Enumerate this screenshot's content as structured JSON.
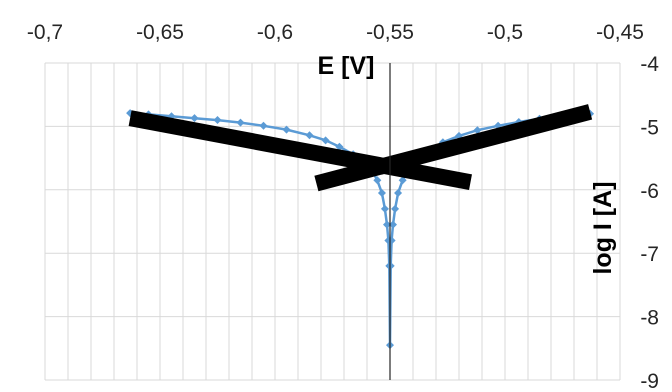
{
  "chart_data": {
    "type": "scatter",
    "title": "",
    "xlabel": "E [V]",
    "ylabel": "log I [A]",
    "xlim": [
      -0.7,
      -0.45
    ],
    "ylim": [
      -9,
      -4
    ],
    "x_ticks": [
      "-0,7",
      "-0,65",
      "-0,6",
      "-0,55",
      "-0,5",
      "-0,45"
    ],
    "y_ticks": [
      "-4",
      "-5",
      "-6",
      "-7",
      "-8",
      "-9"
    ],
    "x_axis_position": "top",
    "y_axis_position": "right",
    "grid": true,
    "minor_x_grid_step": 0.01,
    "legend": "none",
    "series": [
      {
        "color": "#5b9bd5",
        "marker": "diamond",
        "x": [
          -0.663,
          -0.655,
          -0.645,
          -0.635,
          -0.625,
          -0.615,
          -0.605,
          -0.595,
          -0.585,
          -0.578,
          -0.572,
          -0.566,
          -0.562,
          -0.558,
          -0.5555,
          -0.5535,
          -0.5522,
          -0.5513,
          -0.5507,
          -0.5503,
          -0.55,
          -0.5497,
          -0.5493,
          -0.5487,
          -0.5478,
          -0.5465,
          -0.5445,
          -0.542,
          -0.538,
          -0.533,
          -0.527,
          -0.52,
          -0.512,
          -0.503,
          -0.494,
          -0.485,
          -0.476,
          -0.468,
          -0.463
        ],
        "y": [
          -4.79,
          -4.81,
          -4.84,
          -4.87,
          -4.9,
          -4.94,
          -4.99,
          -5.05,
          -5.14,
          -5.22,
          -5.32,
          -5.44,
          -5.55,
          -5.68,
          -5.85,
          -6.05,
          -6.3,
          -6.55,
          -6.8,
          -7.2,
          -8.45,
          -7.2,
          -6.8,
          -6.55,
          -6.3,
          -6.05,
          -5.85,
          -5.68,
          -5.52,
          -5.38,
          -5.25,
          -5.15,
          -5.06,
          -4.99,
          -4.93,
          -4.88,
          -4.85,
          -4.82,
          -4.8
        ]
      }
    ],
    "tafel_lines": [
      {
        "color": "#000000",
        "x": [
          -0.663,
          -0.515
        ],
        "y": [
          -4.87,
          -5.88
        ]
      },
      {
        "color": "#000000",
        "x": [
          -0.582,
          -0.463
        ],
        "y": [
          -5.9,
          -4.77
        ]
      }
    ]
  }
}
